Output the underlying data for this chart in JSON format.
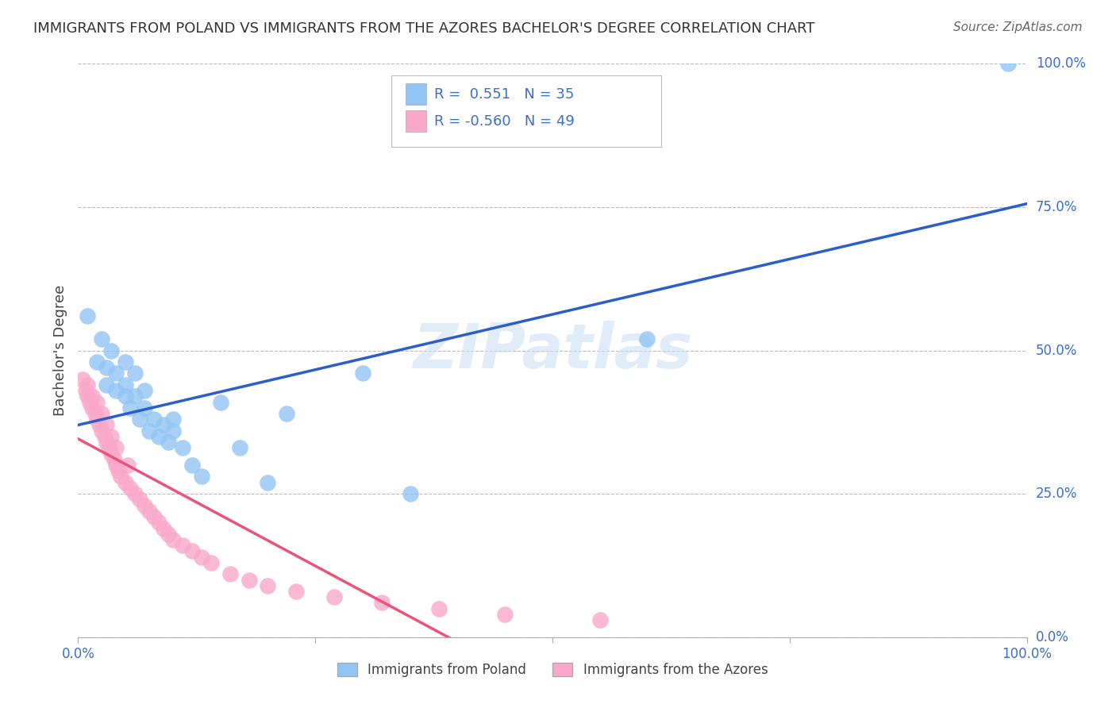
{
  "title": "IMMIGRANTS FROM POLAND VS IMMIGRANTS FROM THE AZORES BACHELOR'S DEGREE CORRELATION CHART",
  "source": "Source: ZipAtlas.com",
  "ylabel": "Bachelor's Degree",
  "watermark": "ZIPatlas",
  "legend_r1": "R =  0.551   N = 35",
  "legend_r2": "R = -0.560   N = 49",
  "poland_color": "#92C5F5",
  "azores_color": "#F9A8C9",
  "poland_line_color": "#2B5EC8",
  "azores_line_color": "#E8547A",
  "label_color": "#3B6EC8",
  "title_color": "#333333",
  "background_color": "#FFFFFF",
  "grid_color": "#BBBBBB",
  "legend_label_poland": "Immigrants from Poland",
  "legend_label_azores": "Immigrants from the Azores",
  "poland_scatter_x": [
    0.01,
    0.02,
    0.025,
    0.03,
    0.03,
    0.035,
    0.04,
    0.04,
    0.05,
    0.05,
    0.05,
    0.055,
    0.06,
    0.06,
    0.065,
    0.07,
    0.07,
    0.075,
    0.08,
    0.085,
    0.09,
    0.095,
    0.1,
    0.1,
    0.11,
    0.12,
    0.13,
    0.15,
    0.17,
    0.2,
    0.22,
    0.3,
    0.35,
    0.6,
    0.98
  ],
  "poland_scatter_y": [
    0.56,
    0.48,
    0.52,
    0.44,
    0.47,
    0.5,
    0.43,
    0.46,
    0.42,
    0.44,
    0.48,
    0.4,
    0.42,
    0.46,
    0.38,
    0.4,
    0.43,
    0.36,
    0.38,
    0.35,
    0.37,
    0.34,
    0.36,
    0.38,
    0.33,
    0.3,
    0.28,
    0.41,
    0.33,
    0.27,
    0.39,
    0.46,
    0.25,
    0.52,
    1.0
  ],
  "azores_scatter_x": [
    0.005,
    0.008,
    0.01,
    0.01,
    0.012,
    0.015,
    0.015,
    0.018,
    0.02,
    0.02,
    0.022,
    0.025,
    0.025,
    0.028,
    0.03,
    0.03,
    0.032,
    0.035,
    0.035,
    0.038,
    0.04,
    0.04,
    0.042,
    0.045,
    0.05,
    0.052,
    0.055,
    0.06,
    0.065,
    0.07,
    0.075,
    0.08,
    0.085,
    0.09,
    0.095,
    0.1,
    0.11,
    0.12,
    0.13,
    0.14,
    0.16,
    0.18,
    0.2,
    0.23,
    0.27,
    0.32,
    0.38,
    0.45,
    0.55
  ],
  "azores_scatter_y": [
    0.45,
    0.43,
    0.42,
    0.44,
    0.41,
    0.4,
    0.42,
    0.39,
    0.38,
    0.41,
    0.37,
    0.36,
    0.39,
    0.35,
    0.34,
    0.37,
    0.33,
    0.32,
    0.35,
    0.31,
    0.3,
    0.33,
    0.29,
    0.28,
    0.27,
    0.3,
    0.26,
    0.25,
    0.24,
    0.23,
    0.22,
    0.21,
    0.2,
    0.19,
    0.18,
    0.17,
    0.16,
    0.15,
    0.14,
    0.13,
    0.11,
    0.1,
    0.09,
    0.08,
    0.07,
    0.06,
    0.05,
    0.04,
    0.03
  ],
  "xlim": [
    0.0,
    1.0
  ],
  "ylim": [
    0.0,
    1.0
  ],
  "ytick_values": [
    0.0,
    0.25,
    0.5,
    0.75,
    1.0
  ],
  "ytick_labels": [
    "0.0%",
    "25.0%",
    "50.0%",
    "75.0%",
    "100.0%"
  ],
  "xtick_values": [
    0.0,
    0.25,
    0.5,
    0.75,
    1.0
  ],
  "xtick_labels": [
    "0.0%",
    "",
    "",
    "",
    "100.0%"
  ]
}
